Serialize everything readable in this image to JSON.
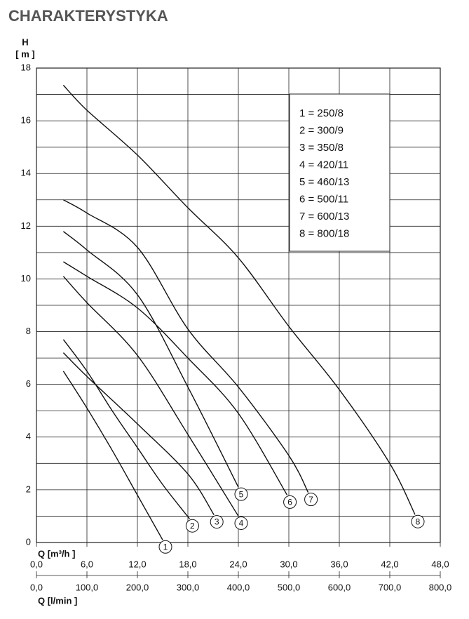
{
  "chart_data": {
    "type": "line",
    "title": "CHARAKTERYSTYKA",
    "ylabel": "H",
    "yunit": "[ m ]",
    "xlabel": "Q [m³/h ]",
    "x2label": "Q [l/min ]",
    "xlim": [
      0,
      48
    ],
    "ylim": [
      0,
      18
    ],
    "x2lim": [
      0,
      800
    ],
    "xticks": [
      {
        "value": 0,
        "label": "0,0"
      },
      {
        "value": 6,
        "label": "6,0"
      },
      {
        "value": 12,
        "label": "12,0"
      },
      {
        "value": 18,
        "label": "18,0"
      },
      {
        "value": 24,
        "label": "24,0"
      },
      {
        "value": 30,
        "label": "30,0"
      },
      {
        "value": 36,
        "label": "36,0"
      },
      {
        "value": 42,
        "label": "42,0"
      },
      {
        "value": 48,
        "label": "48,0"
      }
    ],
    "x2ticks": [
      {
        "value": 0,
        "label": "0,0"
      },
      {
        "value": 100,
        "label": "100,0"
      },
      {
        "value": 200,
        "label": "200,0"
      },
      {
        "value": 300,
        "label": "300,0"
      },
      {
        "value": 400,
        "label": "400,0"
      },
      {
        "value": 500,
        "label": "500,0"
      },
      {
        "value": 600,
        "label": "600,0"
      },
      {
        "value": 700,
        "label": "700,0"
      },
      {
        "value": 800,
        "label": "800,0"
      }
    ],
    "yticks": [
      0,
      2,
      4,
      6,
      8,
      10,
      12,
      14,
      16,
      18
    ],
    "yminorticks": [
      1,
      3,
      5,
      7,
      9,
      11,
      13,
      15,
      17
    ],
    "grid": true,
    "series": [
      {
        "name": "1",
        "legend": "1 = 250/8",
        "color": "#111111",
        "x": [
          3.2,
          6,
          9,
          12,
          15
        ],
        "values": [
          6.5,
          5.1,
          3.5,
          1.8,
          0.1
        ]
      },
      {
        "name": "2",
        "legend": "2 = 300/9",
        "color": "#111111",
        "x": [
          3.2,
          6,
          9,
          12,
          15,
          18.2
        ],
        "values": [
          7.7,
          6.5,
          5.0,
          3.6,
          2.2,
          0.9
        ]
      },
      {
        "name": "3",
        "legend": "3 = 350/8",
        "color": "#111111",
        "x": [
          3.2,
          6,
          12,
          18,
          21.1
        ],
        "values": [
          7.2,
          6.3,
          4.5,
          2.6,
          1.05
        ]
      },
      {
        "name": "4",
        "legend": "4 = 420/11",
        "color": "#111111",
        "x": [
          3.2,
          6,
          12,
          18,
          24
        ],
        "values": [
          10.1,
          9.1,
          7.1,
          4.1,
          1.0
        ]
      },
      {
        "name": "5",
        "legend": "5 = 460/13",
        "color": "#111111",
        "x": [
          3.2,
          6,
          12,
          18,
          24
        ],
        "values": [
          11.8,
          11.1,
          9.4,
          5.9,
          2.1
        ]
      },
      {
        "name": "6",
        "legend": "6 = 500/11",
        "color": "#111111",
        "x": [
          3.2,
          6,
          12,
          18,
          24,
          29.8
        ],
        "values": [
          10.65,
          10.1,
          8.9,
          7.0,
          4.9,
          1.8
        ]
      },
      {
        "name": "7",
        "legend": "7 = 600/13",
        "color": "#111111",
        "x": [
          3.2,
          6,
          12,
          18,
          24,
          30,
          32.3
        ],
        "values": [
          13.0,
          12.5,
          11.2,
          8.1,
          5.9,
          3.3,
          1.9
        ]
      },
      {
        "name": "8",
        "legend": "8 = 800/18",
        "color": "#111111",
        "x": [
          3.2,
          6,
          12,
          18,
          24,
          30,
          36,
          42,
          45
        ],
        "values": [
          17.35,
          16.4,
          14.7,
          12.7,
          10.8,
          8.2,
          5.8,
          3.0,
          1.06
        ]
      }
    ]
  }
}
